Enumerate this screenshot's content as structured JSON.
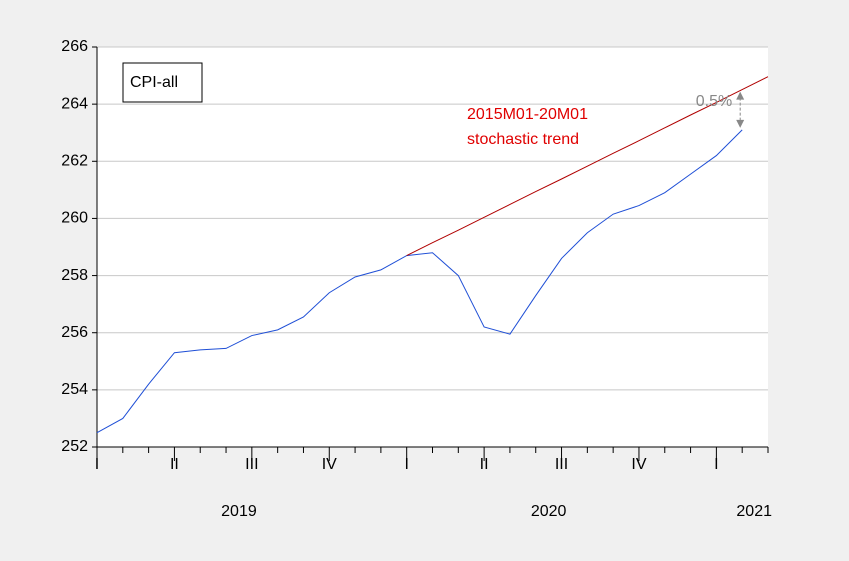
{
  "chart_data": {
    "type": "line",
    "categories": [
      "I",
      null,
      null,
      "II",
      null,
      null,
      "III",
      null,
      null,
      "IV",
      null,
      null,
      "I",
      null,
      null,
      "II",
      null,
      null,
      "III",
      null,
      null,
      "IV",
      null,
      null,
      "I",
      null,
      null
    ],
    "years": [
      "2019",
      "2020",
      "2021"
    ],
    "series": [
      {
        "name": "CPI-all",
        "color": "#1f4fd6",
        "values": [
          252.5,
          253.0,
          254.2,
          255.3,
          255.4,
          255.45,
          255.9,
          256.1,
          256.55,
          257.4,
          257.95,
          258.2,
          258.7,
          258.8,
          258.0,
          256.2,
          255.95,
          257.3,
          258.6,
          259.5,
          260.15,
          260.45,
          260.9,
          261.55,
          262.2,
          263.1,
          null
        ]
      },
      {
        "color": "#b00000",
        "values": [
          null,
          null,
          null,
          null,
          null,
          null,
          null,
          null,
          null,
          null,
          null,
          null,
          258.7,
          259.15,
          259.59,
          260.04,
          260.49,
          260.94,
          261.38,
          261.83,
          262.28,
          262.72,
          263.17,
          263.62,
          264.06,
          264.51,
          264.96
        ]
      }
    ],
    "annotations": [
      "2015M01-20M01",
      "stochastic trend",
      "0.5%"
    ],
    "ylim": [
      252,
      266
    ],
    "yticks": [
      252,
      254,
      256,
      258,
      260,
      262,
      264,
      266
    ],
    "grid": true
  }
}
